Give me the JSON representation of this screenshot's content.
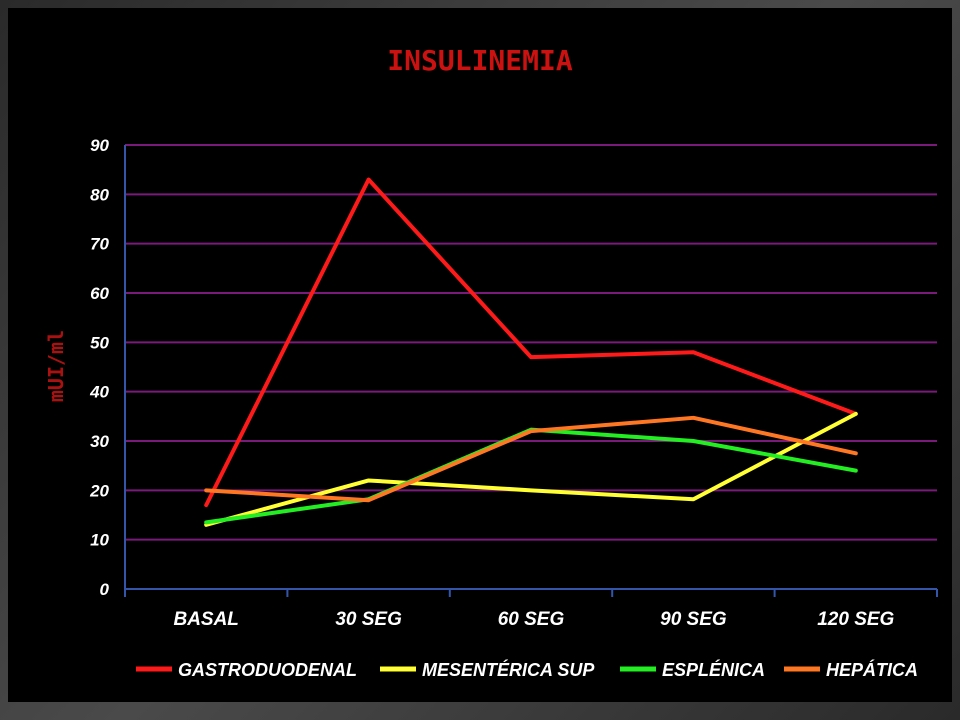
{
  "chart_data": {
    "type": "line",
    "title": "INSULINEMIA",
    "ylabel": "mUI/ml",
    "xlabel": "",
    "categories": [
      "BASAL",
      "30 SEG",
      "60 SEG",
      "90 SEG",
      "120 SEG"
    ],
    "ylim": [
      0,
      90
    ],
    "yticks": [
      0,
      10,
      20,
      30,
      40,
      50,
      60,
      70,
      80,
      90
    ],
    "grid": true,
    "legend_position": "bottom",
    "series": [
      {
        "name": "GASTRODUODENAL",
        "color": "#ff1a1a",
        "values": [
          17,
          83,
          47,
          48,
          35.5
        ]
      },
      {
        "name": "MESENTÉRICA SUP",
        "color": "#ffff33",
        "values": [
          13,
          22,
          20,
          18.2,
          35.5
        ]
      },
      {
        "name": "ESPLÉNICA",
        "color": "#22ee22",
        "values": [
          13.5,
          18.2,
          32.3,
          30,
          24
        ]
      },
      {
        "name": "HEPÁTICA",
        "color": "#ff7722",
        "values": [
          20,
          18,
          32,
          34.7,
          27.5
        ]
      }
    ],
    "colors": {
      "title": "#cc1111",
      "ylabel": "#aa1111",
      "grid": "#7a1a7a",
      "axis": "#3355aa",
      "tick_text": "#ffffff"
    }
  }
}
